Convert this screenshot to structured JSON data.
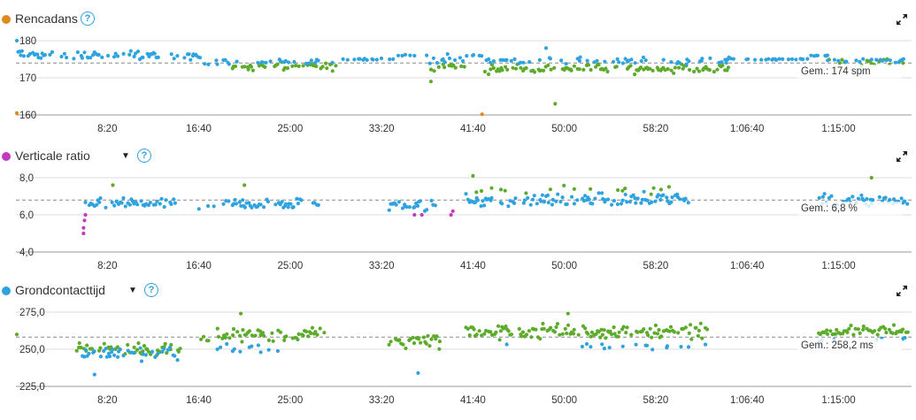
{
  "colors": {
    "blue": "#2ea3e0",
    "green": "#5cab2a",
    "orange": "#e3891b",
    "purple": "#c23bbd",
    "grid": "#dddddd",
    "avg_line": "#888888"
  },
  "icons": {
    "help": "question-circle-icon",
    "expand": "expand-arrows-icon",
    "dropdown": "caret-down-icon"
  },
  "panels": [
    {
      "title": "Rencadans",
      "dot_color": "#e3891b",
      "has_dropdown": false,
      "help": "?",
      "y_ticks": [
        "180",
        "170",
        "160"
      ],
      "avg_label": "Gem.: 174 spm"
    },
    {
      "title": "Verticale ratio",
      "dot_color": "#c23bbd",
      "has_dropdown": true,
      "help": "?",
      "y_ticks": [
        "8,0",
        "6,0",
        "4,0"
      ],
      "avg_label": "Gem.: 6,8 %"
    },
    {
      "title": "Grondcontacttijd",
      "dot_color": "#2ea3e0",
      "has_dropdown": true,
      "help": "?",
      "y_ticks": [
        "275,0",
        "250,0",
        "225,0"
      ],
      "avg_label": "Gem.: 258,2 ms"
    }
  ],
  "chart_data": [
    {
      "type": "scatter",
      "title": "Rencadans",
      "unit": "spm",
      "y_ticks": [
        180,
        170,
        160
      ],
      "ylim": [
        160,
        182
      ],
      "x_tick_labels": [
        "8:20",
        "16:40",
        "25:00",
        "33:20",
        "41:40",
        "50:00",
        "58:20",
        "1:06:40",
        "1:15:00"
      ],
      "x_ticks_seconds": [
        500,
        1000,
        1500,
        2000,
        2500,
        3000,
        3500,
        4000,
        4500
      ],
      "xlim_seconds": [
        0,
        4880
      ],
      "average": 174,
      "avg_label": "Gem.: 174 spm",
      "grid": true,
      "color_key": {
        "blue": "#2ea3e0",
        "green": "#5cab2a",
        "orange": "#e3891b"
      },
      "segments": [
        {
          "x": [
            0,
            1020
          ],
          "level": 176,
          "spread": 1.8,
          "color": "blue",
          "density": 0.55
        },
        {
          "x": [
            1020,
            1050
          ],
          "level": 174,
          "spread": 1.2,
          "color": "blue",
          "density": 0.3
        },
        {
          "x": [
            1050,
            1180
          ],
          "level": 174,
          "spread": 1.5,
          "color": "blue",
          "density": 0.45
        },
        {
          "x": [
            1180,
            1770
          ],
          "level": 173,
          "spread": 1.6,
          "color": "green",
          "density": 0.55
        },
        {
          "x": [
            1200,
            1780
          ],
          "level": 174.5,
          "spread": 1.2,
          "color": "blue",
          "density": 0.25
        },
        {
          "x": [
            1780,
            2080
          ],
          "level": 175,
          "spread": 0.3,
          "color": "blue",
          "density": 0.35
        },
        {
          "x": [
            2080,
            2260
          ],
          "level": 176,
          "spread": 0.3,
          "color": "blue",
          "density": 0.45
        },
        {
          "x": [
            2260,
            2460
          ],
          "level": 173,
          "spread": 2.0,
          "color": "green",
          "density": 0.5
        },
        {
          "x": [
            2260,
            2460
          ],
          "level": 175,
          "spread": 1.6,
          "color": "blue",
          "density": 0.3
        },
        {
          "x": [
            2460,
            2560
          ],
          "level": 176,
          "spread": 0.3,
          "color": "blue",
          "density": 0.4
        },
        {
          "x": [
            2560,
            3900
          ],
          "level": 172.5,
          "spread": 1.8,
          "color": "green",
          "density": 0.65
        },
        {
          "x": [
            2560,
            3900
          ],
          "level": 174.5,
          "spread": 1.4,
          "color": "blue",
          "density": 0.3
        },
        {
          "x": [
            3900,
            4340
          ],
          "level": 175,
          "spread": 0.3,
          "color": "blue",
          "density": 0.45
        },
        {
          "x": [
            4340,
            4440
          ],
          "level": 176,
          "spread": 0.3,
          "color": "blue",
          "density": 0.5
        },
        {
          "x": [
            4440,
            4880
          ],
          "level": 174,
          "spread": 1.8,
          "color": "green",
          "density": 0.35
        },
        {
          "x": [
            4440,
            4880
          ],
          "level": 174.5,
          "spread": 0.8,
          "color": "blue",
          "density": 0.35
        }
      ],
      "outliers": [
        {
          "x": 5,
          "y": 160.5,
          "color": "orange"
        },
        {
          "x": 5,
          "y": 180,
          "color": "blue"
        },
        {
          "x": 2550,
          "y": 160.2,
          "color": "orange"
        },
        {
          "x": 2950,
          "y": 163,
          "color": "green"
        },
        {
          "x": 2270,
          "y": 169,
          "color": "green"
        },
        {
          "x": 2900,
          "y": 178,
          "color": "blue"
        },
        {
          "x": 3900,
          "y": 175.5,
          "color": "blue"
        }
      ]
    },
    {
      "type": "scatter",
      "title": "Verticale ratio",
      "unit": "%",
      "y_ticks": [
        8.0,
        6.0,
        4.0
      ],
      "ylim": [
        4.0,
        8.3
      ],
      "x_tick_labels": [
        "8:20",
        "16:40",
        "25:00",
        "33:20",
        "41:40",
        "50:00",
        "58:20",
        "1:06:40",
        "1:15:00"
      ],
      "x_ticks_seconds": [
        500,
        1000,
        1500,
        2000,
        2500,
        3000,
        3500,
        4000,
        4500
      ],
      "xlim_seconds": [
        0,
        4880
      ],
      "average": 6.8,
      "avg_label": "Gem.: 6,8 %",
      "grid": true,
      "color_key": {
        "blue": "#2ea3e0",
        "green": "#5cab2a",
        "purple": "#c23bbd"
      },
      "segments": [
        {
          "x": [
            380,
            870
          ],
          "level": 6.6,
          "spread": 0.45,
          "color": "blue",
          "density": 0.7
        },
        {
          "x": [
            1000,
            1090
          ],
          "level": 6.4,
          "spread": 0.2,
          "color": "blue",
          "density": 0.5
        },
        {
          "x": [
            1130,
            1560
          ],
          "level": 6.6,
          "spread": 0.45,
          "color": "blue",
          "density": 0.7
        },
        {
          "x": [
            1620,
            1680
          ],
          "level": 6.6,
          "spread": 0.2,
          "color": "blue",
          "density": 0.5
        },
        {
          "x": [
            2030,
            2300
          ],
          "level": 6.5,
          "spread": 0.45,
          "color": "blue",
          "density": 0.6
        },
        {
          "x": [
            2460,
            3680
          ],
          "level": 6.8,
          "spread": 0.55,
          "color": "blue",
          "density": 0.7
        },
        {
          "x": [
            2500,
            3680
          ],
          "level": 7.4,
          "spread": 0.4,
          "color": "green",
          "density": 0.12
        },
        {
          "x": [
            4390,
            4880
          ],
          "level": 6.8,
          "spread": 0.45,
          "color": "blue",
          "density": 0.7
        }
      ],
      "outliers": [
        {
          "x": 370,
          "y": 5.0,
          "color": "purple"
        },
        {
          "x": 370,
          "y": 5.3,
          "color": "purple"
        },
        {
          "x": 375,
          "y": 5.7,
          "color": "purple"
        },
        {
          "x": 380,
          "y": 6.0,
          "color": "purple"
        },
        {
          "x": 2180,
          "y": 6.0,
          "color": "purple"
        },
        {
          "x": 2220,
          "y": 6.0,
          "color": "purple"
        },
        {
          "x": 2380,
          "y": 6.0,
          "color": "purple"
        },
        {
          "x": 2390,
          "y": 6.2,
          "color": "purple"
        },
        {
          "x": 530,
          "y": 7.6,
          "color": "green"
        },
        {
          "x": 1250,
          "y": 7.6,
          "color": "green"
        },
        {
          "x": 4680,
          "y": 8.0,
          "color": "green"
        },
        {
          "x": 2500,
          "y": 8.1,
          "color": "green"
        }
      ]
    },
    {
      "type": "scatter",
      "title": "Grondcontacttijd",
      "unit": "ms",
      "y_ticks": [
        275.0,
        250.0,
        225.0
      ],
      "ylim": [
        225.0,
        277.0
      ],
      "x_tick_labels": [
        "8:20",
        "16:40",
        "25:00",
        "33:20",
        "41:40",
        "50:00",
        "58:20",
        "1:06:40",
        "1:15:00"
      ],
      "x_ticks_seconds": [
        500,
        1000,
        1500,
        2000,
        2500,
        3000,
        3500,
        4000,
        4500
      ],
      "xlim_seconds": [
        0,
        4880
      ],
      "average": 258.2,
      "avg_label": "Gem.: 258,2 ms",
      "grid": true,
      "color_key": {
        "blue": "#2ea3e0",
        "green": "#5cab2a"
      },
      "segments": [
        {
          "x": [
            330,
            900
          ],
          "level": 250,
          "spread": 6,
          "color": "green",
          "density": 0.55
        },
        {
          "x": [
            330,
            900
          ],
          "level": 247,
          "spread": 6,
          "color": "blue",
          "density": 0.55
        },
        {
          "x": [
            1000,
            1050
          ],
          "level": 256,
          "spread": 5,
          "color": "green",
          "density": 0.5
        },
        {
          "x": [
            1100,
            1700
          ],
          "level": 260,
          "spread": 7,
          "color": "green",
          "density": 0.7
        },
        {
          "x": [
            1100,
            1500
          ],
          "level": 250,
          "spread": 5,
          "color": "blue",
          "density": 0.15
        },
        {
          "x": [
            2030,
            2320
          ],
          "level": 256,
          "spread": 7,
          "color": "green",
          "density": 0.7
        },
        {
          "x": [
            2460,
            3780
          ],
          "level": 262,
          "spread": 7,
          "color": "green",
          "density": 0.8
        },
        {
          "x": [
            2460,
            3780
          ],
          "level": 252,
          "spread": 3,
          "color": "blue",
          "density": 0.08
        },
        {
          "x": [
            4390,
            4880
          ],
          "level": 262,
          "spread": 6,
          "color": "green",
          "density": 0.85
        },
        {
          "x": [
            4390,
            4880
          ],
          "level": 257,
          "spread": 4,
          "color": "blue",
          "density": 0.15
        }
      ],
      "outliers": [
        {
          "x": 5,
          "y": 260,
          "color": "green"
        },
        {
          "x": 430,
          "y": 233,
          "color": "blue"
        },
        {
          "x": 2200,
          "y": 234,
          "color": "blue"
        },
        {
          "x": 3020,
          "y": 274,
          "color": "green"
        },
        {
          "x": 1230,
          "y": 274,
          "color": "green"
        }
      ]
    }
  ]
}
